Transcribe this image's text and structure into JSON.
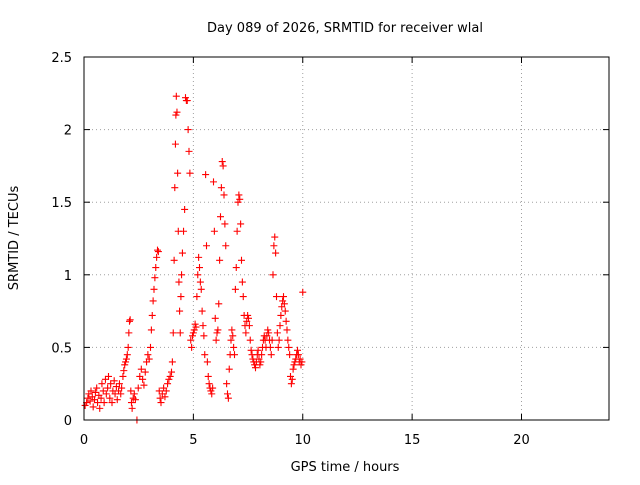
{
  "chart_data": {
    "type": "scatter",
    "title": "Day 089 of 2026, SRMTID for receiver wlal",
    "xlabel": "GPS time / hours",
    "ylabel": "SRMTID / TECUs",
    "xlim": [
      0,
      24
    ],
    "ylim": [
      0,
      2.5
    ],
    "grid": true,
    "marker": "+",
    "color": "#ff0000",
    "x_ticks": [
      0,
      5,
      10,
      15,
      20
    ],
    "x_tick_labels": [
      "0",
      "5",
      "10",
      "15",
      "20"
    ],
    "y_ticks": [
      0,
      0.5,
      1,
      1.5,
      2,
      2.5
    ],
    "y_tick_labels": [
      "0",
      "0.5",
      "1",
      "1.5",
      "2",
      "2.5"
    ],
    "series": [
      {
        "name": "SRMTID",
        "points": [
          [
            0.05,
            0.1
          ],
          [
            0.12,
            0.12
          ],
          [
            0.18,
            0.15
          ],
          [
            0.22,
            0.18
          ],
          [
            0.28,
            0.13
          ],
          [
            0.32,
            0.2
          ],
          [
            0.38,
            0.16
          ],
          [
            0.42,
            0.09
          ],
          [
            0.48,
            0.14
          ],
          [
            0.52,
            0.19
          ],
          [
            0.58,
            0.22
          ],
          [
            0.62,
            0.12
          ],
          [
            0.68,
            0.17
          ],
          [
            0.72,
            0.08
          ],
          [
            0.78,
            0.15
          ],
          [
            0.82,
            0.25
          ],
          [
            0.88,
            0.2
          ],
          [
            0.92,
            0.12
          ],
          [
            0.98,
            0.28
          ],
          [
            1.02,
            0.18
          ],
          [
            1.08,
            0.22
          ],
          [
            1.12,
            0.3
          ],
          [
            1.18,
            0.15
          ],
          [
            1.22,
            0.25
          ],
          [
            1.28,
            0.12
          ],
          [
            1.32,
            0.2
          ],
          [
            1.38,
            0.27
          ],
          [
            1.42,
            0.18
          ],
          [
            1.48,
            0.23
          ],
          [
            1.52,
            0.14
          ],
          [
            1.58,
            0.2
          ],
          [
            1.62,
            0.25
          ],
          [
            1.68,
            0.18
          ],
          [
            1.72,
            0.22
          ],
          [
            1.78,
            0.3
          ],
          [
            1.82,
            0.34
          ],
          [
            1.86,
            0.38
          ],
          [
            1.9,
            0.4
          ],
          [
            1.94,
            0.42
          ],
          [
            1.98,
            0.45
          ],
          [
            2.02,
            0.5
          ],
          [
            2.05,
            0.6
          ],
          [
            2.08,
            0.68
          ],
          [
            2.11,
            0.69
          ],
          [
            2.14,
            0.2
          ],
          [
            2.17,
            0.12
          ],
          [
            2.2,
            0.08
          ],
          [
            2.25,
            0.15
          ],
          [
            2.3,
            0.18
          ],
          [
            2.35,
            0.14
          ],
          [
            2.42,
            0.0
          ],
          [
            2.48,
            0.22
          ],
          [
            2.55,
            0.3
          ],
          [
            2.62,
            0.35
          ],
          [
            2.68,
            0.28
          ],
          [
            2.74,
            0.24
          ],
          [
            2.8,
            0.33
          ],
          [
            2.86,
            0.4
          ],
          [
            2.92,
            0.45
          ],
          [
            2.98,
            0.42
          ],
          [
            3.04,
            0.5
          ],
          [
            3.08,
            0.62
          ],
          [
            3.12,
            0.72
          ],
          [
            3.16,
            0.82
          ],
          [
            3.2,
            0.9
          ],
          [
            3.24,
            0.98
          ],
          [
            3.28,
            1.05
          ],
          [
            3.32,
            1.12
          ],
          [
            3.36,
            1.17
          ],
          [
            3.4,
            1.16
          ],
          [
            3.44,
            0.2
          ],
          [
            3.48,
            0.15
          ],
          [
            3.52,
            0.12
          ],
          [
            3.58,
            0.18
          ],
          [
            3.64,
            0.22
          ],
          [
            3.7,
            0.16
          ],
          [
            3.76,
            0.2
          ],
          [
            3.82,
            0.25
          ],
          [
            3.88,
            0.28
          ],
          [
            3.94,
            0.3
          ],
          [
            4.0,
            0.33
          ],
          [
            4.04,
            0.4
          ],
          [
            4.08,
            0.6
          ],
          [
            4.12,
            1.1
          ],
          [
            4.15,
            1.6
          ],
          [
            4.18,
            1.9
          ],
          [
            4.2,
            2.1
          ],
          [
            4.22,
            2.23
          ],
          [
            4.25,
            2.12
          ],
          [
            4.28,
            1.7
          ],
          [
            4.31,
            1.3
          ],
          [
            4.34,
            0.95
          ],
          [
            4.37,
            0.75
          ],
          [
            4.4,
            0.6
          ],
          [
            4.43,
            0.85
          ],
          [
            4.46,
            1.0
          ],
          [
            4.5,
            1.15
          ],
          [
            4.55,
            1.3
          ],
          [
            4.6,
            1.45
          ],
          [
            4.64,
            2.22
          ],
          [
            4.68,
            2.2
          ],
          [
            4.72,
            2.2
          ],
          [
            4.76,
            2.0
          ],
          [
            4.8,
            1.85
          ],
          [
            4.84,
            1.7
          ],
          [
            4.88,
            0.55
          ],
          [
            4.92,
            0.5
          ],
          [
            4.96,
            0.58
          ],
          [
            5.0,
            0.6
          ],
          [
            5.04,
            0.62
          ],
          [
            5.08,
            0.66
          ],
          [
            5.12,
            0.64
          ],
          [
            5.16,
            0.85
          ],
          [
            5.2,
            1.0
          ],
          [
            5.24,
            1.12
          ],
          [
            5.28,
            1.05
          ],
          [
            5.32,
            0.95
          ],
          [
            5.36,
            0.9
          ],
          [
            5.4,
            0.75
          ],
          [
            5.44,
            0.65
          ],
          [
            5.48,
            0.58
          ],
          [
            5.52,
            0.45
          ],
          [
            5.56,
            1.69
          ],
          [
            5.6,
            1.2
          ],
          [
            5.64,
            0.4
          ],
          [
            5.68,
            0.3
          ],
          [
            5.72,
            0.25
          ],
          [
            5.76,
            0.22
          ],
          [
            5.8,
            0.2
          ],
          [
            5.84,
            0.18
          ],
          [
            5.88,
            0.22
          ],
          [
            5.92,
            1.64
          ],
          [
            5.96,
            1.3
          ],
          [
            6.0,
            0.7
          ],
          [
            6.04,
            0.55
          ],
          [
            6.08,
            0.6
          ],
          [
            6.12,
            0.62
          ],
          [
            6.16,
            0.8
          ],
          [
            6.2,
            1.1
          ],
          [
            6.24,
            1.4
          ],
          [
            6.28,
            1.6
          ],
          [
            6.32,
            1.78
          ],
          [
            6.36,
            1.75
          ],
          [
            6.4,
            1.55
          ],
          [
            6.44,
            1.35
          ],
          [
            6.48,
            1.2
          ],
          [
            6.52,
            0.25
          ],
          [
            6.56,
            0.18
          ],
          [
            6.6,
            0.15
          ],
          [
            6.64,
            0.35
          ],
          [
            6.68,
            0.45
          ],
          [
            6.72,
            0.55
          ],
          [
            6.76,
            0.62
          ],
          [
            6.8,
            0.58
          ],
          [
            6.84,
            0.5
          ],
          [
            6.88,
            0.45
          ],
          [
            6.92,
            0.9
          ],
          [
            6.96,
            1.05
          ],
          [
            7.0,
            1.3
          ],
          [
            7.04,
            1.5
          ],
          [
            7.08,
            1.55
          ],
          [
            7.12,
            1.52
          ],
          [
            7.16,
            1.35
          ],
          [
            7.2,
            1.1
          ],
          [
            7.24,
            0.95
          ],
          [
            7.28,
            0.85
          ],
          [
            7.32,
            0.72
          ],
          [
            7.36,
            0.65
          ],
          [
            7.4,
            0.6
          ],
          [
            7.44,
            0.68
          ],
          [
            7.48,
            0.72
          ],
          [
            7.52,
            0.7
          ],
          [
            7.56,
            0.65
          ],
          [
            7.6,
            0.55
          ],
          [
            7.64,
            0.48
          ],
          [
            7.68,
            0.45
          ],
          [
            7.72,
            0.42
          ],
          [
            7.76,
            0.4
          ],
          [
            7.8,
            0.38
          ],
          [
            7.84,
            0.36
          ],
          [
            7.88,
            0.4
          ],
          [
            7.92,
            0.45
          ],
          [
            7.96,
            0.48
          ],
          [
            8.0,
            0.42
          ],
          [
            8.04,
            0.38
          ],
          [
            8.08,
            0.4
          ],
          [
            8.12,
            0.45
          ],
          [
            8.16,
            0.5
          ],
          [
            8.2,
            0.55
          ],
          [
            8.24,
            0.58
          ],
          [
            8.28,
            0.55
          ],
          [
            8.32,
            0.5
          ],
          [
            8.36,
            0.58
          ],
          [
            8.4,
            0.62
          ],
          [
            8.44,
            0.6
          ],
          [
            8.48,
            0.55
          ],
          [
            8.52,
            0.5
          ],
          [
            8.56,
            0.45
          ],
          [
            8.6,
            0.55
          ],
          [
            8.64,
            1.0
          ],
          [
            8.68,
            1.2
          ],
          [
            8.72,
            1.26
          ],
          [
            8.76,
            1.15
          ],
          [
            8.8,
            0.85
          ],
          [
            8.84,
            0.6
          ],
          [
            8.88,
            0.5
          ],
          [
            8.92,
            0.55
          ],
          [
            8.96,
            0.65
          ],
          [
            9.0,
            0.72
          ],
          [
            9.04,
            0.78
          ],
          [
            9.08,
            0.82
          ],
          [
            9.12,
            0.85
          ],
          [
            9.16,
            0.8
          ],
          [
            9.2,
            0.75
          ],
          [
            9.24,
            0.68
          ],
          [
            9.28,
            0.62
          ],
          [
            9.32,
            0.55
          ],
          [
            9.36,
            0.5
          ],
          [
            9.4,
            0.45
          ],
          [
            9.44,
            0.3
          ],
          [
            9.48,
            0.25
          ],
          [
            9.52,
            0.28
          ],
          [
            9.56,
            0.35
          ],
          [
            9.6,
            0.38
          ],
          [
            9.64,
            0.4
          ],
          [
            9.68,
            0.42
          ],
          [
            9.72,
            0.45
          ],
          [
            9.76,
            0.48
          ],
          [
            9.8,
            0.45
          ],
          [
            9.84,
            0.4
          ],
          [
            9.88,
            0.42
          ],
          [
            9.92,
            0.38
          ],
          [
            9.96,
            0.4
          ],
          [
            10.0,
            0.88
          ]
        ]
      }
    ]
  }
}
